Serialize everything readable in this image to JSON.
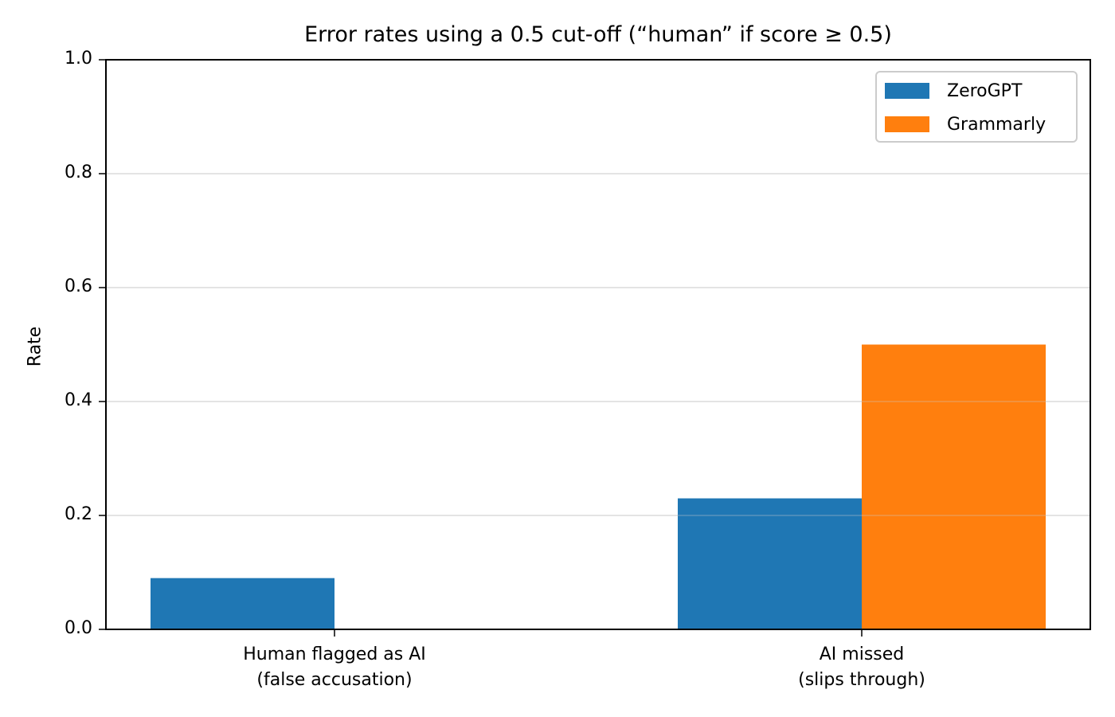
{
  "chart_data": {
    "type": "bar",
    "title": "Error rates using a 0.5 cut-off (“human” if score ≥ 0.5)",
    "xlabel": "",
    "ylabel": "Rate",
    "ylim": [
      0,
      1.0
    ],
    "yticks": [
      "0.0",
      "0.2",
      "0.4",
      "0.6",
      "0.8",
      "1.0"
    ],
    "grid": "y",
    "legend_position": "upper right",
    "categories": [
      "Human flagged as AI\n(false accusation)",
      "AI missed\n(slips through)"
    ],
    "category_lines": [
      [
        "Human flagged as AI",
        "(false accusation)"
      ],
      [
        "AI missed",
        "(slips through)"
      ]
    ],
    "series": [
      {
        "name": "ZeroGPT",
        "color": "#1f77b4",
        "values": [
          0.09,
          0.23
        ]
      },
      {
        "name": "Grammarly",
        "color": "#ff7f0e",
        "values": [
          0.0,
          0.5
        ]
      }
    ]
  }
}
